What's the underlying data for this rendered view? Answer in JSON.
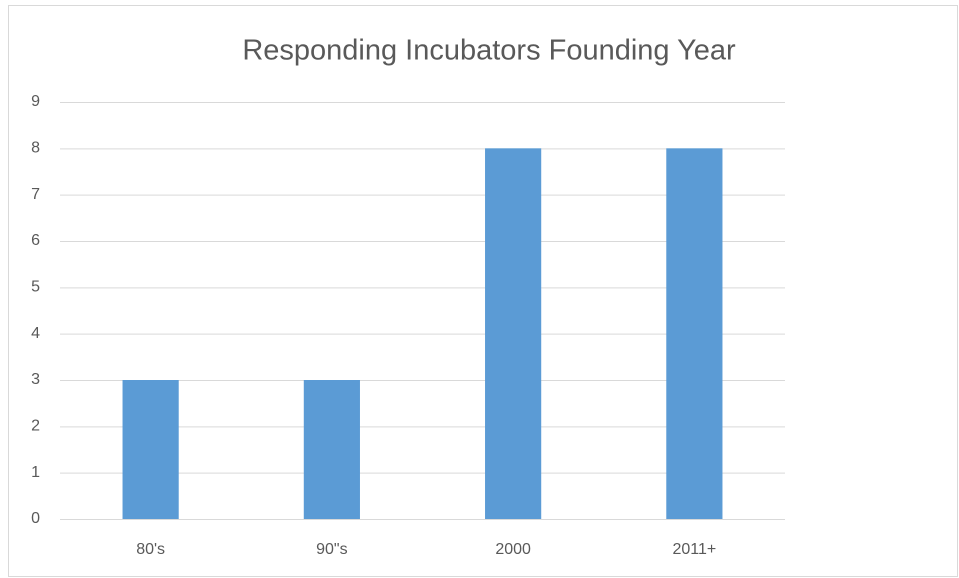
{
  "chart_data": {
    "type": "bar",
    "title": "Responding Incubators Founding Year",
    "categories": [
      "80's",
      "90\"s",
      "2000",
      "2011+"
    ],
    "values": [
      3,
      3,
      8,
      8
    ],
    "color": "#5b9bd5",
    "ylim": [
      0,
      9
    ],
    "yticks": [
      0,
      1,
      2,
      3,
      4,
      5,
      6,
      7,
      8,
      9
    ],
    "grid": true
  }
}
